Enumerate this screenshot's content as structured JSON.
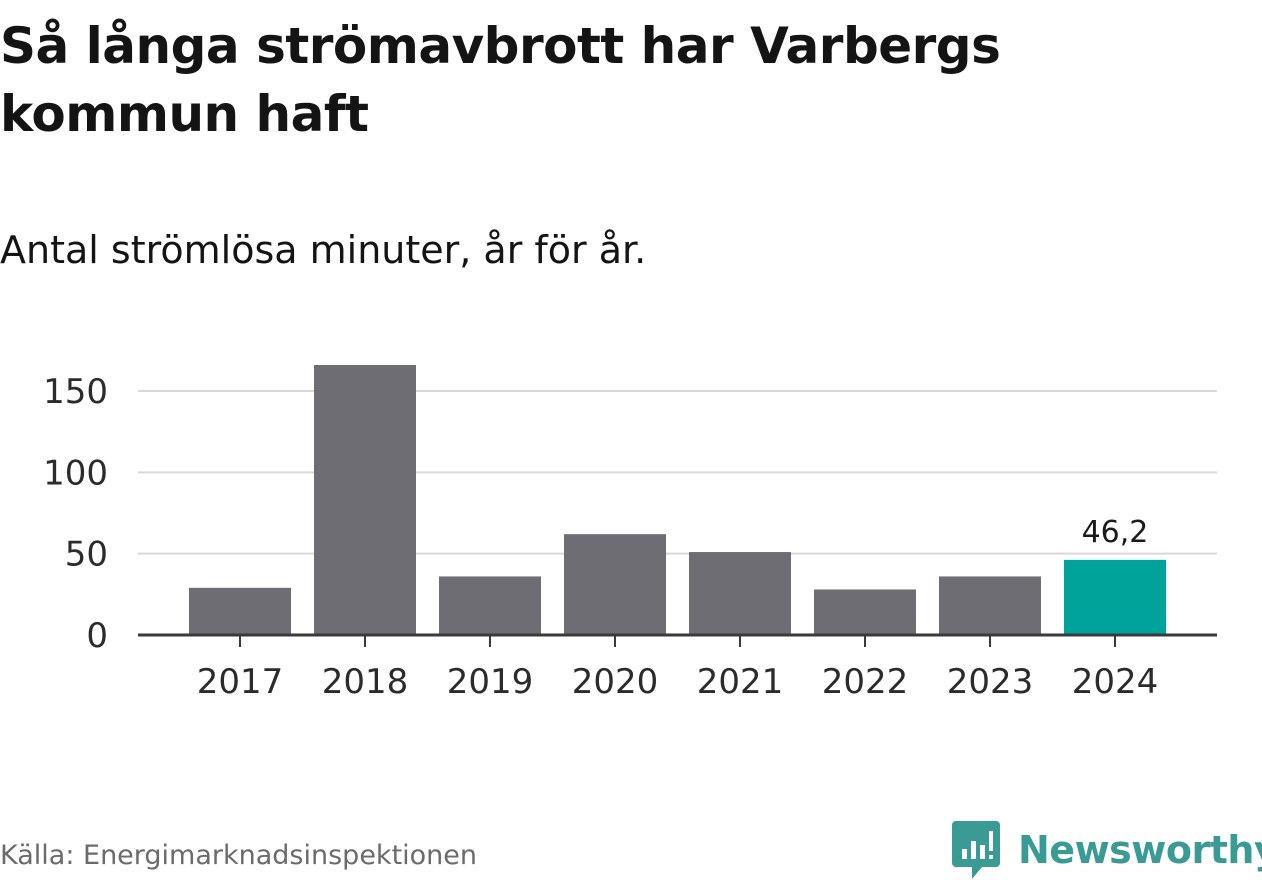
{
  "header": {
    "title": "Så långa strömavbrott har Varbergs kommun haft",
    "subtitle": "Antal strömlösa minuter, år för år."
  },
  "footer": {
    "source": "Källa: Energimarknadsinspektionen",
    "brand": "Newsworthy",
    "brand_icon": "newsworthy-logo-icon"
  },
  "colors": {
    "bar": "#6e6d73",
    "highlight": "#00a39a",
    "grid": "#d9d9d9",
    "axis": "#3a3a3a",
    "brand": "#3a9a94"
  },
  "chart_data": {
    "type": "bar",
    "categories": [
      "2017",
      "2018",
      "2019",
      "2020",
      "2021",
      "2022",
      "2023",
      "2024"
    ],
    "values": [
      29,
      166,
      36,
      62,
      51,
      28,
      36,
      46.2
    ],
    "highlight_index": 7,
    "value_labels": [
      "",
      "",
      "",
      "",
      "",
      "",
      "",
      "46,2"
    ],
    "yticks": [
      0,
      50,
      100,
      150
    ],
    "ytick_labels": [
      "0",
      "50",
      "100",
      "150"
    ],
    "ylim": [
      0,
      166
    ],
    "grid": true,
    "xlabel": "",
    "ylabel": ""
  }
}
